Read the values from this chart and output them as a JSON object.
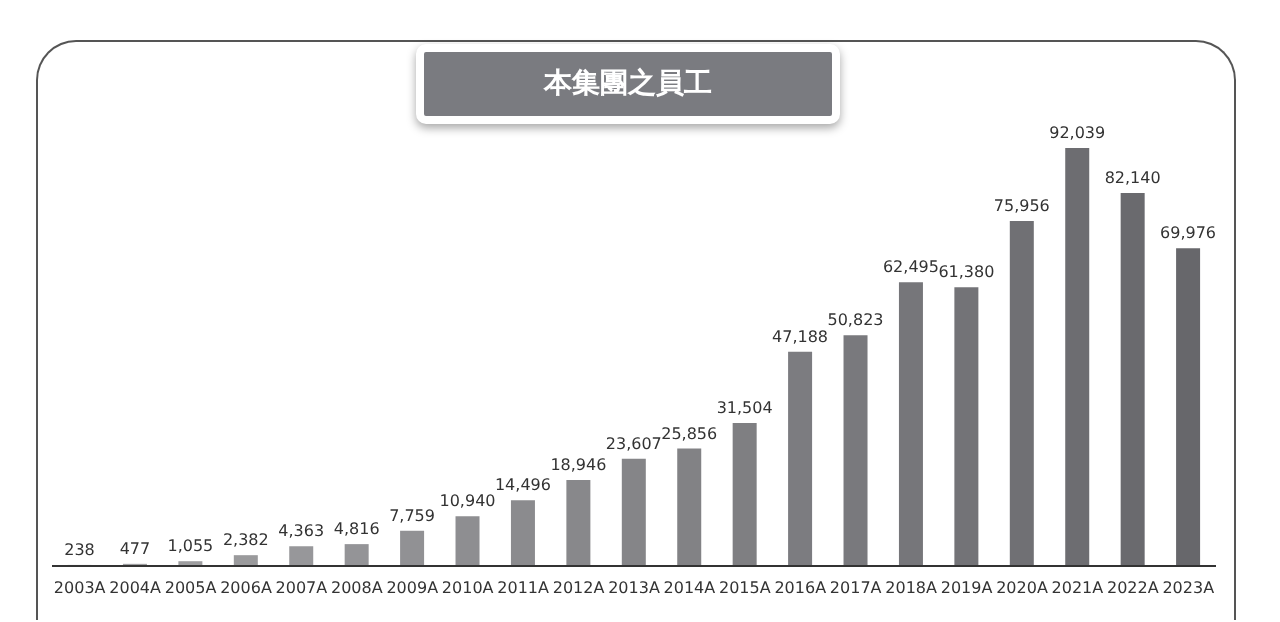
{
  "chart_data": {
    "type": "bar",
    "title": "本集團之員工",
    "categories": [
      "2003A",
      "2004A",
      "2005A",
      "2006A",
      "2007A",
      "2008A",
      "2009A",
      "2010A",
      "2011A",
      "2012A",
      "2013A",
      "2014A",
      "2015A",
      "2016A",
      "2017A",
      "2018A",
      "2019A",
      "2020A",
      "2021A",
      "2022A",
      "2023A"
    ],
    "values": [
      238,
      477,
      1055,
      2382,
      4363,
      4816,
      7759,
      10940,
      14496,
      18946,
      23607,
      25856,
      31504,
      47188,
      50823,
      62495,
      61380,
      75956,
      92039,
      82140,
      69976
    ],
    "colors": [
      "#a3a3a5",
      "#a0a0a2",
      "#9d9d9f",
      "#9a9a9c",
      "#97979a",
      "#949497",
      "#919194",
      "#8e8e91",
      "#8b8b8e",
      "#88888b",
      "#858588",
      "#828285",
      "#7f7f82",
      "#7c7c80",
      "#79797d",
      "#76767a",
      "#737377",
      "#707074",
      "#6d6d71",
      "#6a6a6e",
      "#67676b"
    ],
    "value_labels": [
      "238",
      "477",
      "1,055",
      "2,382",
      "4,363",
      "4,816",
      "7,759",
      "10,940",
      "14,496",
      "18,946",
      "23,607",
      "25,856",
      "31,504",
      "47,188",
      "50,823",
      "62,495",
      "61,380",
      "75,956",
      "92,039",
      "82,140",
      "69,976"
    ]
  }
}
